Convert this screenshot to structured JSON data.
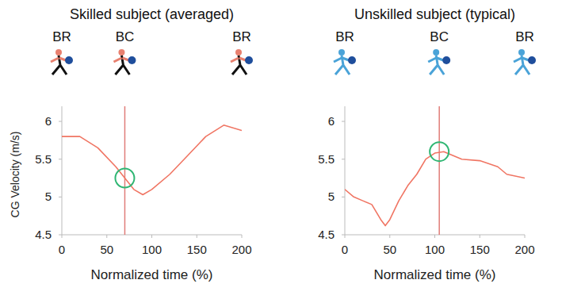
{
  "chart_data": [
    {
      "type": "line",
      "title": "Skilled subject (averaged)",
      "y_label": "CG Velocity (m/s)",
      "x_label": "Normalized time (%)",
      "x": [
        0,
        20,
        40,
        60,
        70,
        80,
        90,
        100,
        120,
        140,
        160,
        180,
        200
      ],
      "values": [
        5.8,
        5.8,
        5.65,
        5.4,
        5.25,
        5.1,
        5.03,
        5.1,
        5.3,
        5.55,
        5.8,
        5.95,
        5.88
      ],
      "color": "#f07563",
      "xlim": [
        0,
        200
      ],
      "xticks": [
        0,
        50,
        100,
        150,
        200
      ],
      "ylim": [
        4.5,
        6.2
      ],
      "yticks": [
        4.5,
        5,
        5.5,
        6
      ],
      "events": [
        {
          "label": "BR",
          "x": 0
        },
        {
          "label": "BC",
          "x": 70
        },
        {
          "label": "BR",
          "x": 200
        }
      ],
      "highlight": {
        "x": 70,
        "y": 5.25
      }
    },
    {
      "type": "line",
      "title": "Unskilled subject (typical)",
      "x_label": "Normalized time (%)",
      "x": [
        0,
        10,
        20,
        30,
        40,
        45,
        50,
        60,
        70,
        80,
        90,
        100,
        110,
        120,
        130,
        150,
        170,
        180,
        200
      ],
      "values": [
        5.1,
        5.0,
        4.95,
        4.9,
        4.7,
        4.62,
        4.7,
        4.95,
        5.15,
        5.3,
        5.5,
        5.58,
        5.6,
        5.55,
        5.5,
        5.48,
        5.4,
        5.3,
        5.25
      ],
      "color": "#f07563",
      "xlim": [
        0,
        200
      ],
      "xticks": [
        0,
        50,
        100,
        150,
        200
      ],
      "ylim": [
        4.5,
        6.2
      ],
      "yticks": [
        4.5,
        5,
        5.5,
        6
      ],
      "events": [
        {
          "label": "BR",
          "x": 0
        },
        {
          "label": "BC",
          "x": 105
        },
        {
          "label": "BR",
          "x": 200
        }
      ],
      "highlight": {
        "x": 105,
        "y": 5.6
      }
    }
  ]
}
